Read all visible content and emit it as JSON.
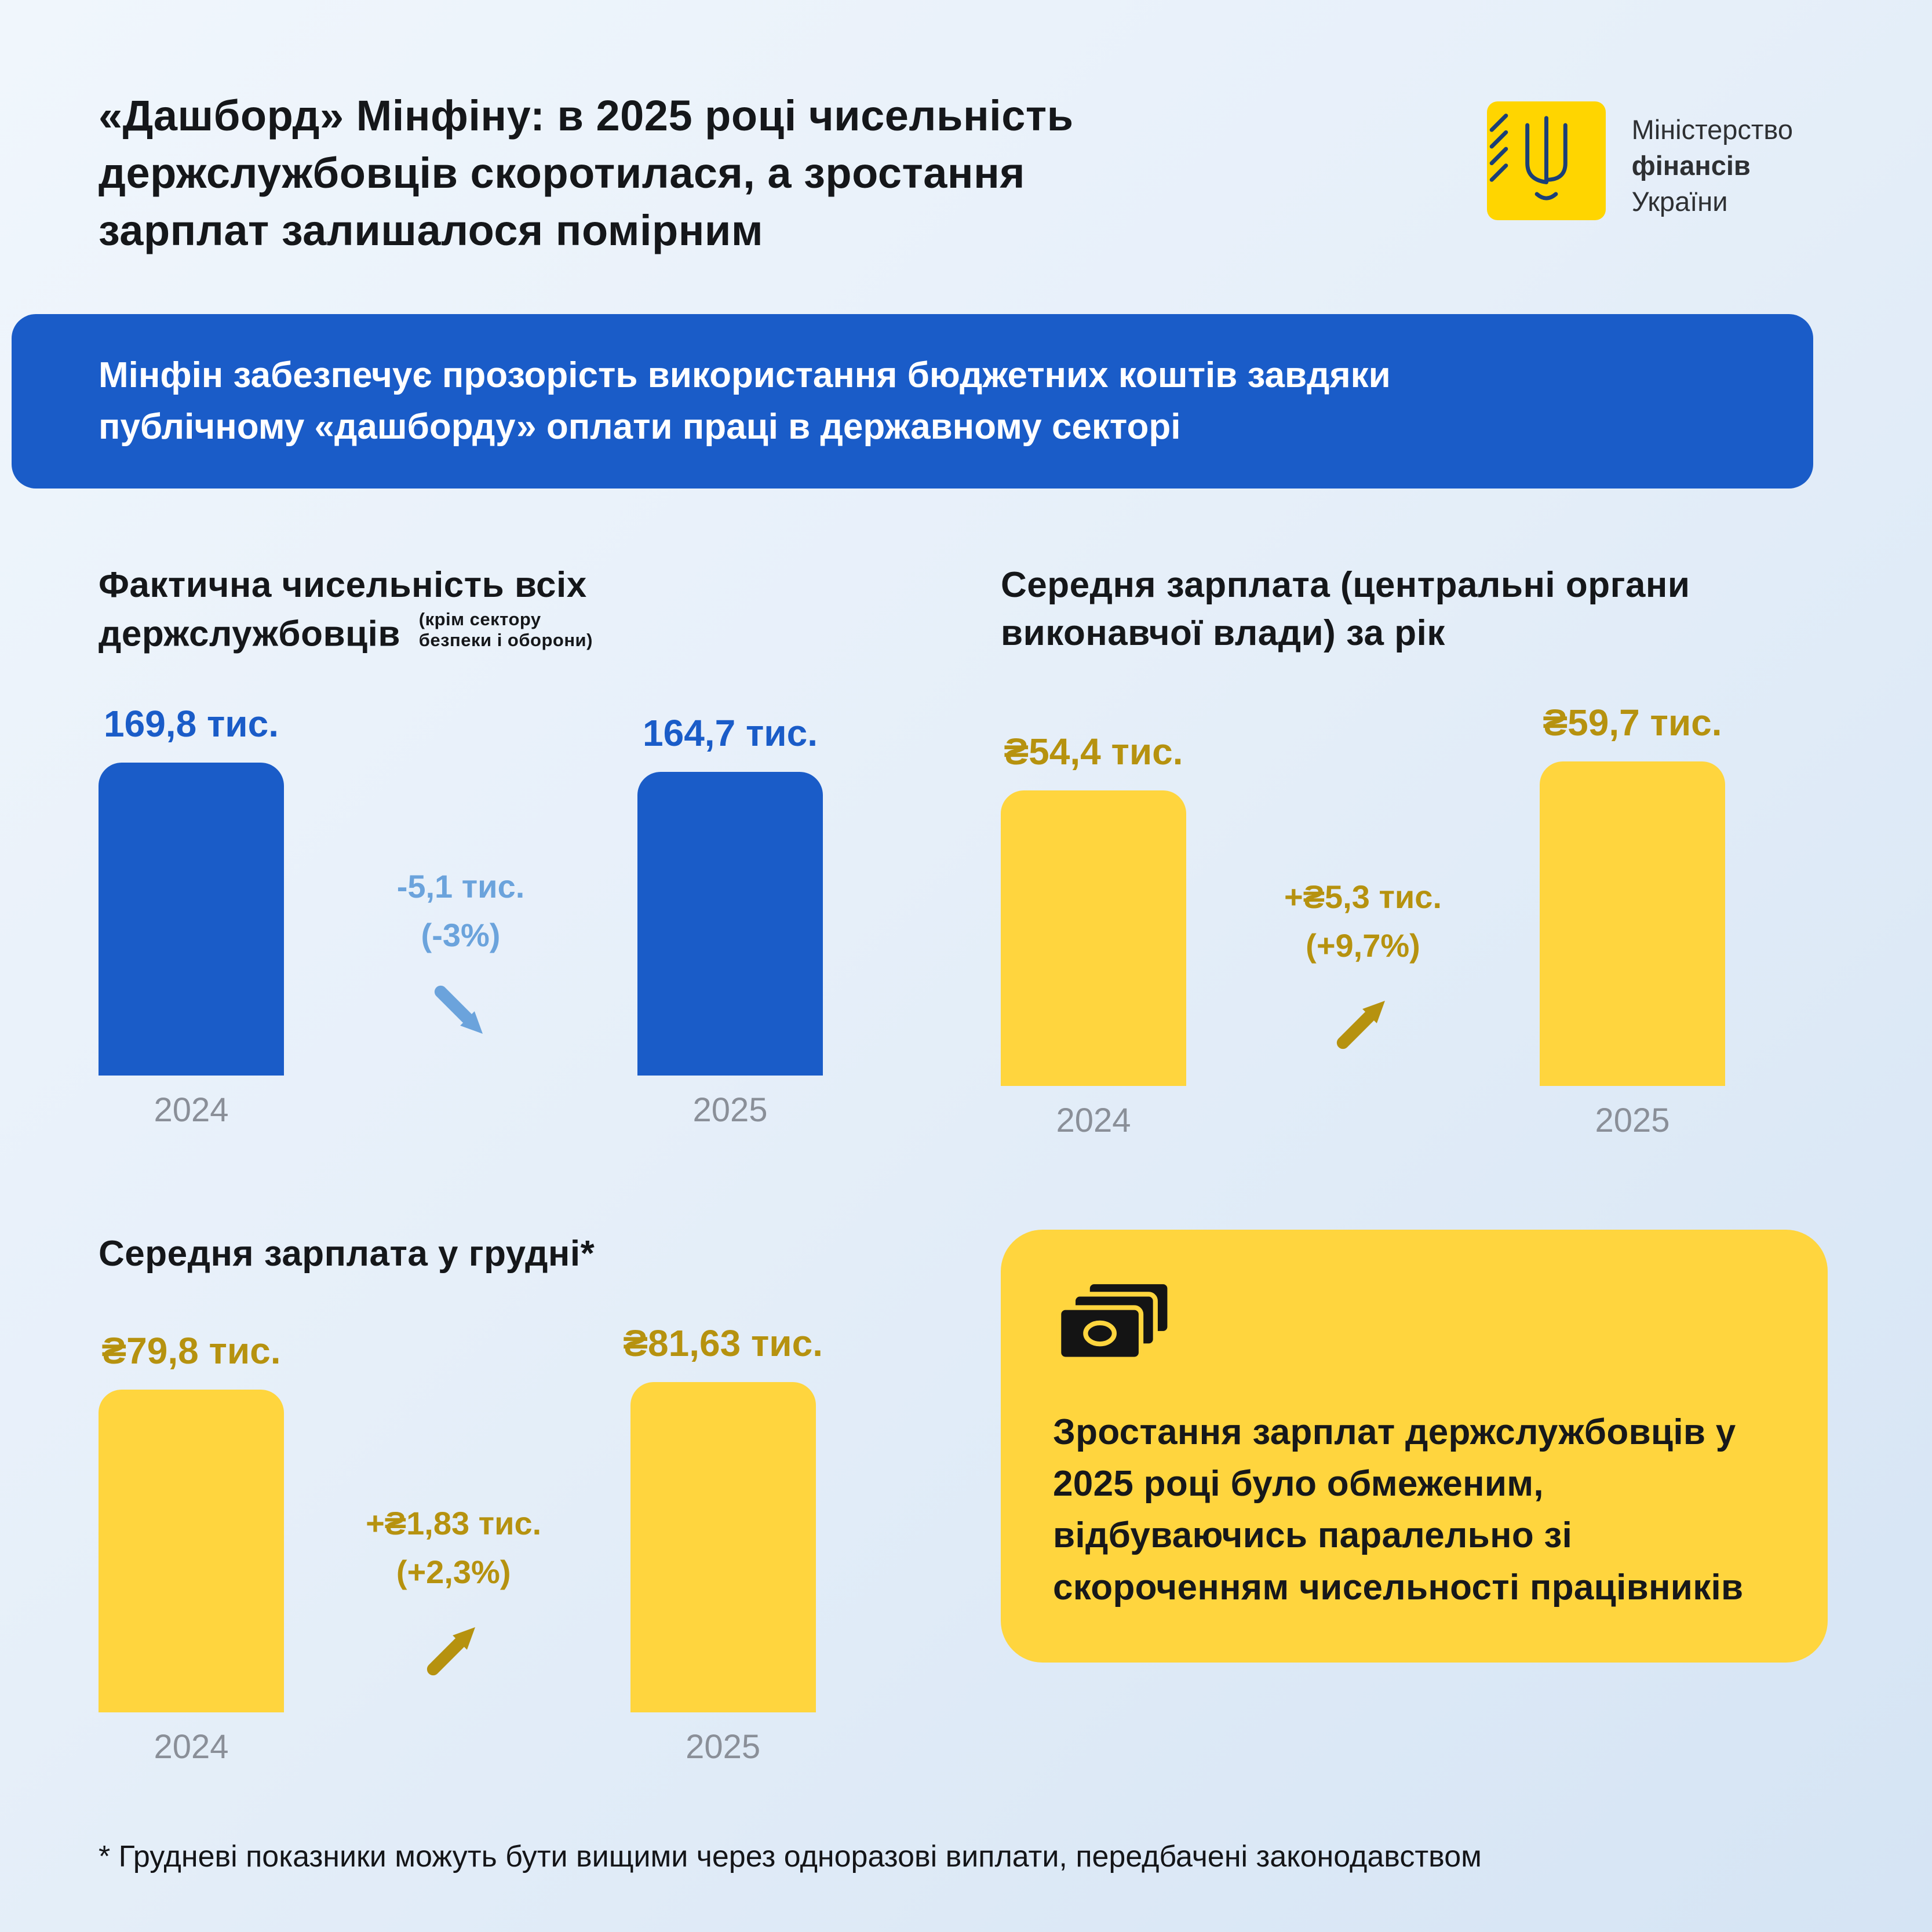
{
  "page": {
    "title": "«Дашборд» Мінфіну: в 2025 році чисельність держслужбовців скоротилася, а зростання зарплат залишалося помірним",
    "banner": "Мінфін забезпечує прозорість використання бюджетних коштів завдяки публічному «дашборду» оплати праці в державному секторі",
    "footnote": "* Грудневі показники можуть бути вищими через одноразові виплати, передбачені законодавством"
  },
  "logo": {
    "line1": "Міністерство",
    "line2": "фінансів",
    "line3": "України"
  },
  "info_card": {
    "text": "Зростання зарплат держслужбовців у 2025 році було обмеженим, відбуваючись паралельно зі скороченням чисельності працівників"
  },
  "colors": {
    "primary_blue": "#1a5cc8",
    "light_blue": "#6ba3dc",
    "bar_yellow": "#ffd53e",
    "gold_text": "#b6920f",
    "card_yellow": "#ffd53e",
    "year_gray": "#8a8f98",
    "logo_yellow": "#ffd500"
  },
  "chart_data": [
    {
      "type": "bar",
      "title": "Фактична чисельність всіх держслужбовців",
      "subtitle": "(крім сектору безпеки і оборони)",
      "categories": [
        "2024",
        "2025"
      ],
      "values": [
        169.8,
        164.7
      ],
      "unit": "тис.",
      "value_labels": [
        "169,8 тис.",
        "164,7 тис."
      ],
      "change_label": "-5,1 тис.",
      "change_pct_label": "(-3%)",
      "trend": "down",
      "bar_color": "#1a5cc8",
      "value_color": "#1a5cc8",
      "change_color": "#6ba3dc"
    },
    {
      "type": "bar",
      "title": "Середня зарплата (центральні органи виконавчої влади) за рік",
      "subtitle": "",
      "categories": [
        "2024",
        "2025"
      ],
      "values": [
        54.4,
        59.7
      ],
      "unit": "₴ тис.",
      "value_labels": [
        "₴54,4 тис.",
        "₴59,7 тис."
      ],
      "change_label": "+₴5,3 тис.",
      "change_pct_label": "(+9,7%)",
      "trend": "up",
      "bar_color": "#ffd53e",
      "value_color": "#b6920f",
      "change_color": "#b6920f"
    },
    {
      "type": "bar",
      "title": "Середня зарплата у грудні*",
      "subtitle": "",
      "categories": [
        "2024",
        "2025"
      ],
      "values": [
        79.8,
        81.63
      ],
      "unit": "₴ тис.",
      "value_labels": [
        "₴79,8 тис.",
        "₴81,63 тис."
      ],
      "change_label": "+₴1,83 тис.",
      "change_pct_label": "(+2,3%)",
      "trend": "up",
      "bar_color": "#ffd53e",
      "value_color": "#b6920f",
      "change_color": "#b6920f"
    }
  ]
}
